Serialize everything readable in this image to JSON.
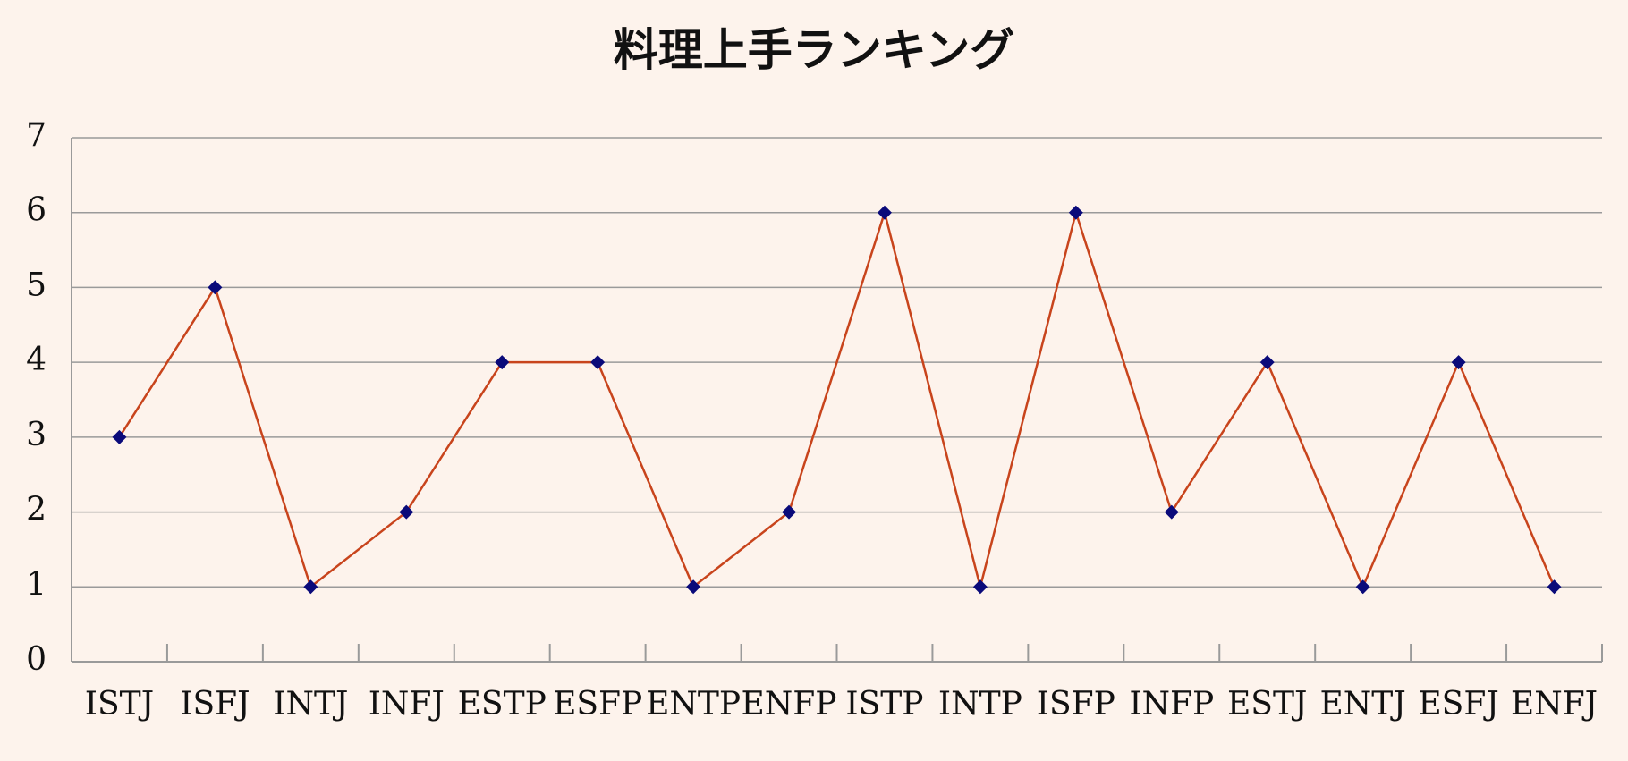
{
  "chart_data": {
    "type": "line",
    "title": "料理上手ランキング",
    "categories": [
      "ISTJ",
      "ISFJ",
      "INTJ",
      "INFJ",
      "ESTP",
      "ESFP",
      "ENTP",
      "ENFP",
      "ISTP",
      "INTP",
      "ISFP",
      "INFP",
      "ESTJ",
      "ENTJ",
      "ESFJ",
      "ENFJ"
    ],
    "values": [
      3,
      5,
      1,
      2,
      4,
      4,
      1,
      2,
      6,
      1,
      6,
      2,
      4,
      1,
      4,
      1
    ],
    "color": "#c8441c",
    "marker_color": "#0a0a7a",
    "ylim": [
      0,
      7
    ],
    "yticks": [
      0,
      1,
      2,
      3,
      4,
      5,
      6,
      7
    ],
    "grid": true
  }
}
